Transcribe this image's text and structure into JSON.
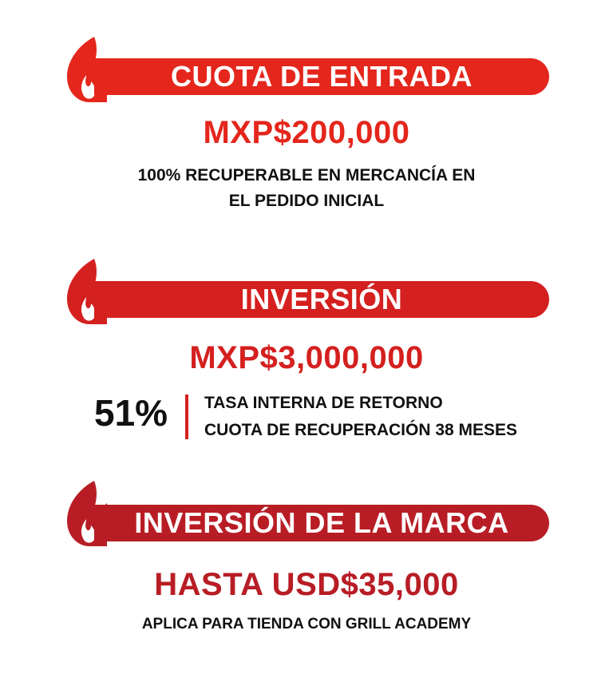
{
  "colors": {
    "banner_1": "#e4261c",
    "banner_2": "#d4201f",
    "banner_3": "#b81d25",
    "amount_1": "#e4261c",
    "amount_2": "#d4201f",
    "amount_3": "#b81d25",
    "divider": "#d4201f",
    "text": "#111111"
  },
  "sections": [
    {
      "title": "CUOTA DE ENTRADA",
      "amount": "MXP$200,000",
      "note_line1": "100% RECUPERABLE EN MERCANCÍA EN",
      "note_line2": "EL PEDIDO INICIAL"
    },
    {
      "title": "INVERSIÓN",
      "amount": "MXP$3,000,000",
      "stat_percent": "51%",
      "stat_line1": "TASA INTERNA DE RETORNO",
      "stat_line2": "CUOTA DE RECUPERACIÓN 38 MESES"
    },
    {
      "title": "INVERSIÓN DE LA MARCA",
      "amount": "HASTA USD$35,000",
      "note_line1": "APLICA PARA TIENDA CON GRILL ACADEMY"
    }
  ]
}
